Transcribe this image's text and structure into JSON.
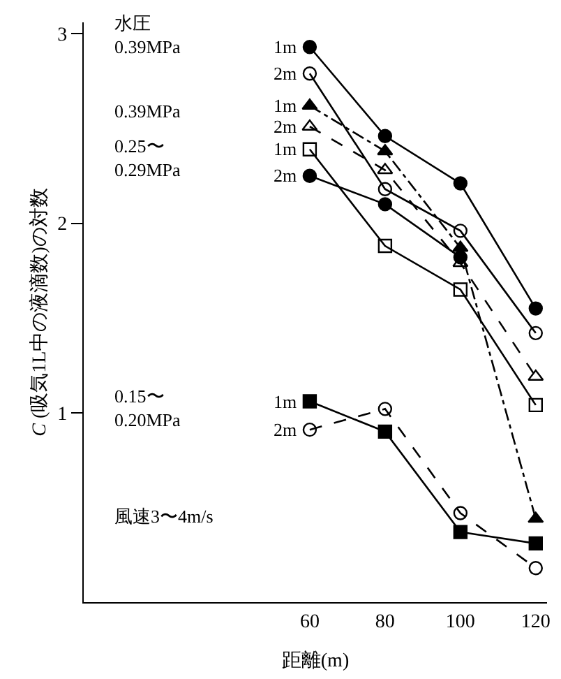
{
  "chart_data": {
    "type": "line",
    "xlabel": "距離(m)",
    "ylabel": "C (吸気1L中の液滴数)の対数",
    "x": [
      60,
      80,
      100,
      120
    ],
    "xlim": [
      0,
      123
    ],
    "xticks": [
      60,
      80,
      100,
      120
    ],
    "ylim": [
      0,
      3.06
    ],
    "yticks": [
      1,
      2,
      3
    ],
    "legend": false,
    "annotations": [
      "水圧",
      "0.39MPa",
      "0.39MPa",
      "0.25〜\n0.29MPa",
      "0.15〜\n0.20MPa",
      "風速3〜4m/s"
    ],
    "series": [
      {
        "name": "1m",
        "color": "#000000",
        "marker": "circle",
        "line_style": "solid",
        "values": [
          2.93,
          2.46,
          2.21,
          1.55
        ]
      },
      {
        "name": "2m",
        "color": "#000000",
        "marker": "circle-open",
        "line_style": "solid",
        "values": [
          2.79,
          2.18,
          1.96,
          1.42
        ]
      },
      {
        "name": "1m",
        "color": "#000000",
        "marker": "triangle",
        "line_style": "dashdot",
        "values": [
          2.62,
          2.38,
          1.87,
          0.44
        ]
      },
      {
        "name": "2m",
        "color": "#000000",
        "marker": "triangle-open",
        "line_style": "dashed",
        "values": [
          2.51,
          2.28,
          1.79,
          1.19
        ]
      },
      {
        "name": "1m",
        "color": "#000000",
        "marker": "square-open",
        "line_style": "solid",
        "values": [
          2.39,
          1.88,
          1.65,
          1.04
        ]
      },
      {
        "name": "2m",
        "color": "#000000",
        "marker": "circle",
        "line_style": "solid",
        "values": [
          2.25,
          2.1,
          1.82,
          null
        ]
      },
      {
        "name": "1m",
        "color": "#000000",
        "marker": "square",
        "line_style": "solid",
        "values": [
          1.06,
          0.9,
          0.37,
          0.31
        ]
      },
      {
        "name": "2m",
        "color": "#000000",
        "marker": "circle-open",
        "line_style": "dashed",
        "values": [
          0.91,
          1.02,
          0.47,
          0.18
        ]
      }
    ]
  }
}
